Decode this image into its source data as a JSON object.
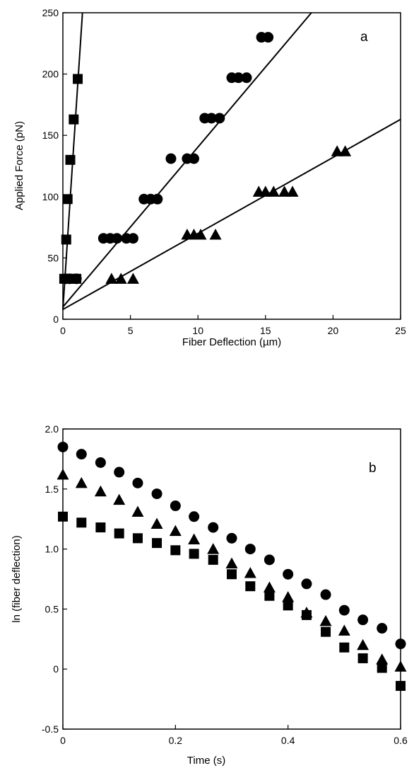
{
  "chart_data": [
    {
      "type": "scatter",
      "panel_label": "a",
      "xlabel": "Fiber Deflection (µm)",
      "ylabel": "Applied Force (pN)",
      "xlim": [
        0,
        25
      ],
      "ylim": [
        0,
        250
      ],
      "x_ticks": [
        0,
        5,
        10,
        15,
        20,
        25
      ],
      "y_ticks": [
        0,
        50,
        100,
        150,
        200,
        250
      ],
      "grid": false,
      "series": [
        {
          "marker": "square",
          "points": [
            [
              0.1,
              33
            ],
            [
              0.25,
              65
            ],
            [
              0.35,
              98
            ],
            [
              0.55,
              130
            ],
            [
              0.8,
              163
            ],
            [
              1.1,
              196
            ],
            [
              0.8,
              33
            ],
            [
              1.0,
              33
            ]
          ],
          "fit": [
            [
              0,
              8
            ],
            [
              1.45,
              250
            ]
          ]
        },
        {
          "marker": "circle",
          "points": [
            [
              0.2,
              33
            ],
            [
              0.5,
              33
            ],
            [
              1.0,
              33
            ],
            [
              3.0,
              66
            ],
            [
              3.5,
              66
            ],
            [
              4.0,
              66
            ],
            [
              4.7,
              66
            ],
            [
              5.2,
              66
            ],
            [
              6.0,
              98
            ],
            [
              6.5,
              98
            ],
            [
              7.0,
              98
            ],
            [
              8.0,
              131
            ],
            [
              9.2,
              131
            ],
            [
              9.7,
              131
            ],
            [
              10.5,
              164
            ],
            [
              11.0,
              164
            ],
            [
              11.6,
              164
            ],
            [
              12.5,
              197
            ],
            [
              13.0,
              197
            ],
            [
              13.6,
              197
            ],
            [
              14.7,
              230
            ],
            [
              15.2,
              230
            ]
          ],
          "fit": [
            [
              0,
              10
            ],
            [
              18.4,
              250
            ]
          ]
        },
        {
          "marker": "triangle",
          "points": [
            [
              3.6,
              33
            ],
            [
              4.3,
              33
            ],
            [
              5.2,
              33
            ],
            [
              9.2,
              69
            ],
            [
              9.7,
              69
            ],
            [
              10.2,
              69
            ],
            [
              11.3,
              69
            ],
            [
              14.5,
              104
            ],
            [
              15.0,
              104
            ],
            [
              15.6,
              104
            ],
            [
              16.4,
              104
            ],
            [
              17.0,
              104
            ],
            [
              20.3,
              137
            ],
            [
              20.9,
              137
            ]
          ],
          "fit": [
            [
              0,
              8
            ],
            [
              25,
              163
            ]
          ]
        }
      ]
    },
    {
      "type": "scatter",
      "panel_label": "b",
      "xlabel": "Time (s)",
      "ylabel": "ln (fiber deflection)",
      "xlim": [
        0,
        0.6
      ],
      "ylim": [
        -0.5,
        2.0
      ],
      "x_ticks": [
        "0",
        "0.2",
        "0.4",
        "0.6"
      ],
      "y_ticks": [
        "-0.5",
        "0",
        "0.5",
        "1.0",
        "1.5",
        "2.0"
      ],
      "grid": false,
      "series": [
        {
          "marker": "circle",
          "points": [
            [
              0,
              1.85
            ],
            [
              0.033,
              1.79
            ],
            [
              0.067,
              1.72
            ],
            [
              0.1,
              1.64
            ],
            [
              0.133,
              1.55
            ],
            [
              0.167,
              1.46
            ],
            [
              0.2,
              1.36
            ],
            [
              0.233,
              1.27
            ],
            [
              0.267,
              1.18
            ],
            [
              0.3,
              1.09
            ],
            [
              0.333,
              1.0
            ],
            [
              0.367,
              0.91
            ],
            [
              0.4,
              0.79
            ],
            [
              0.433,
              0.71
            ],
            [
              0.467,
              0.62
            ],
            [
              0.5,
              0.49
            ],
            [
              0.533,
              0.41
            ],
            [
              0.567,
              0.34
            ],
            [
              0.6,
              0.21
            ]
          ]
        },
        {
          "marker": "triangle",
          "points": [
            [
              0,
              1.62
            ],
            [
              0.033,
              1.55
            ],
            [
              0.067,
              1.48
            ],
            [
              0.1,
              1.41
            ],
            [
              0.133,
              1.31
            ],
            [
              0.167,
              1.21
            ],
            [
              0.2,
              1.15
            ],
            [
              0.233,
              1.08
            ],
            [
              0.267,
              1.0
            ],
            [
              0.3,
              0.88
            ],
            [
              0.333,
              0.8
            ],
            [
              0.367,
              0.68
            ],
            [
              0.4,
              0.6
            ],
            [
              0.433,
              0.47
            ],
            [
              0.467,
              0.4
            ],
            [
              0.5,
              0.32
            ],
            [
              0.533,
              0.2
            ],
            [
              0.567,
              0.08
            ],
            [
              0.6,
              0.02
            ]
          ]
        },
        {
          "marker": "square",
          "points": [
            [
              0,
              1.27
            ],
            [
              0.033,
              1.22
            ],
            [
              0.067,
              1.18
            ],
            [
              0.1,
              1.13
            ],
            [
              0.133,
              1.09
            ],
            [
              0.167,
              1.05
            ],
            [
              0.2,
              0.99
            ],
            [
              0.233,
              0.96
            ],
            [
              0.267,
              0.91
            ],
            [
              0.3,
              0.79
            ],
            [
              0.333,
              0.69
            ],
            [
              0.367,
              0.61
            ],
            [
              0.4,
              0.53
            ],
            [
              0.433,
              0.45
            ],
            [
              0.467,
              0.31
            ],
            [
              0.5,
              0.18
            ],
            [
              0.533,
              0.09
            ],
            [
              0.567,
              0.01
            ],
            [
              0.6,
              -0.14
            ]
          ]
        }
      ]
    }
  ]
}
